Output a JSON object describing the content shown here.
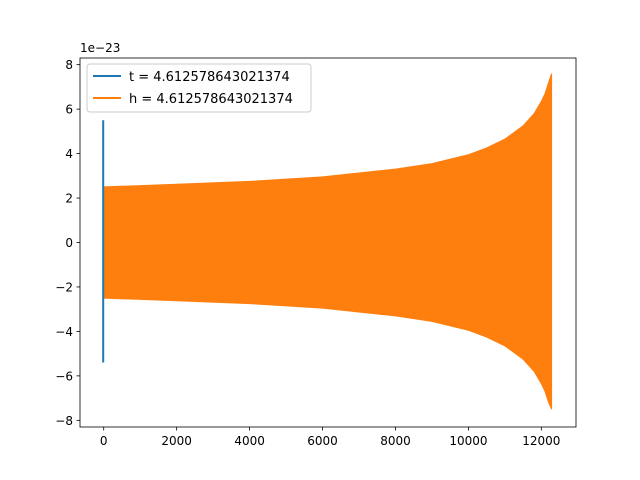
{
  "chart_data": {
    "type": "line",
    "title": "",
    "xlabel": "",
    "ylabel": "",
    "offset_text": "1e−23",
    "xlim": [
      -650,
      12950
    ],
    "ylim": [
      -8.3,
      8.3
    ],
    "xticks": [
      0,
      2000,
      4000,
      6000,
      8000,
      10000,
      12000
    ],
    "xtick_labels": [
      "0",
      "2000",
      "4000",
      "6000",
      "8000",
      "10000",
      "12000"
    ],
    "yticks": [
      -8,
      -6,
      -4,
      -2,
      0,
      2,
      4,
      6,
      8
    ],
    "ytick_labels": [
      "−8",
      "−6",
      "−4",
      "−2",
      "0",
      "2",
      "4",
      "6",
      "8"
    ],
    "grid": false,
    "legend_position": "top-left",
    "series": [
      {
        "name": "t = 4.612578643021374",
        "color": "#1f77b4",
        "style": "short spike near x=0",
        "x_range": [
          0,
          12
        ],
        "y_max": 5.5,
        "y_min": -5.4
      },
      {
        "name": "h = 4.612578643021374",
        "color": "#ff7f0e",
        "style": "dense oscillation (chirp), amplitude envelope",
        "envelope": {
          "x": [
            0,
            2000,
            4000,
            6000,
            8000,
            9000,
            10000,
            10500,
            11000,
            11500,
            11800,
            12000,
            12100,
            12200,
            12280
          ],
          "upper": [
            2.5,
            2.62,
            2.75,
            2.95,
            3.3,
            3.55,
            3.95,
            4.25,
            4.65,
            5.25,
            5.8,
            6.35,
            6.7,
            7.2,
            7.6
          ],
          "lower": [
            -2.5,
            -2.62,
            -2.75,
            -2.95,
            -3.3,
            -3.55,
            -3.95,
            -4.25,
            -4.65,
            -5.25,
            -5.8,
            -6.35,
            -6.7,
            -7.2,
            -7.5
          ]
        }
      }
    ]
  }
}
